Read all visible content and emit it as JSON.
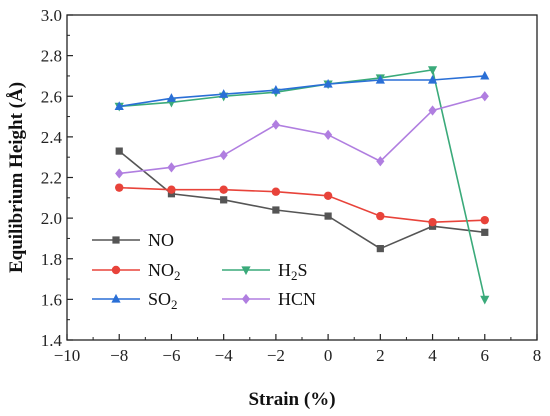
{
  "chart_data": {
    "type": "line",
    "xlabel": "Strain (%)",
    "ylabel": "Equilibrium Height (Å)",
    "xlim": [
      -10,
      8
    ],
    "ylim": [
      1.4,
      3.0
    ],
    "xticks": [
      "−10",
      "−8",
      "−6",
      "−4",
      "−2",
      "0",
      "2",
      "4",
      "6",
      "8"
    ],
    "xtick_values": [
      -10,
      -8,
      -6,
      -4,
      -2,
      0,
      2,
      4,
      6,
      8
    ],
    "yticks": [
      "1.4",
      "1.6",
      "1.8",
      "2.0",
      "2.2",
      "2.4",
      "2.6",
      "2.8",
      "3.0"
    ],
    "ytick_values": [
      1.4,
      1.6,
      1.8,
      2.0,
      2.2,
      2.4,
      2.6,
      2.8,
      3.0
    ],
    "grid": false,
    "legend_placement": "bottom-left",
    "x": [
      -8,
      -6,
      -4,
      -2,
      0,
      2,
      4,
      6
    ],
    "series": [
      {
        "name": "NO",
        "sub": "",
        "marker": "square",
        "color": "#555555",
        "values": [
          2.33,
          2.12,
          2.09,
          2.04,
          2.01,
          1.85,
          1.96,
          1.93
        ]
      },
      {
        "name": "NO",
        "sub": "2",
        "marker": "circle",
        "color": "#e8433a",
        "values": [
          2.15,
          2.14,
          2.14,
          2.13,
          2.11,
          2.01,
          1.98,
          1.99
        ]
      },
      {
        "name": "H",
        "sub": "2",
        "tail": "S",
        "marker": "triangle-down",
        "color": "#3aaa7a",
        "values": [
          2.55,
          2.57,
          2.6,
          2.62,
          2.66,
          2.69,
          2.73,
          1.6
        ]
      },
      {
        "name": "SO",
        "sub": "2",
        "marker": "triangle-up",
        "color": "#2a6fd6",
        "values": [
          2.55,
          2.59,
          2.61,
          2.63,
          2.66,
          2.68,
          2.68,
          2.7
        ]
      },
      {
        "name": "HCN",
        "sub": "",
        "marker": "diamond",
        "color": "#b07ee0",
        "values": [
          2.22,
          2.25,
          2.31,
          2.46,
          2.41,
          2.28,
          2.53,
          2.6
        ]
      }
    ]
  }
}
